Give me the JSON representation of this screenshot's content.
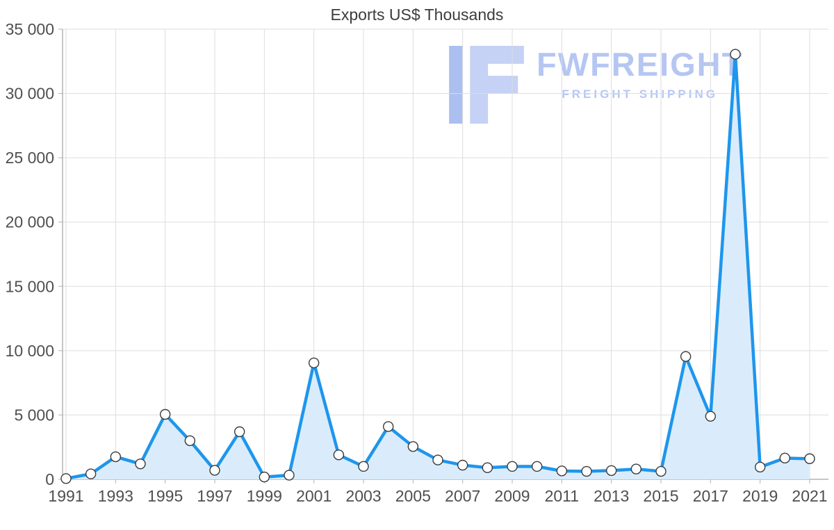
{
  "page": {
    "background": "#ffffff"
  },
  "chart_data": {
    "type": "area",
    "title": "Exports US$ Thousands",
    "x": [
      1991,
      1992,
      1993,
      1994,
      1995,
      1996,
      1997,
      1998,
      1999,
      2000,
      2001,
      2002,
      2003,
      2004,
      2005,
      2006,
      2007,
      2008,
      2009,
      2010,
      2011,
      2012,
      2013,
      2014,
      2015,
      2016,
      2017,
      2018,
      2019,
      2020,
      2021
    ],
    "values": [
      60,
      420,
      1750,
      1200,
      5050,
      3000,
      700,
      3700,
      180,
      320,
      9050,
      1900,
      1000,
      4100,
      2550,
      1500,
      1100,
      900,
      1000,
      1000,
      650,
      620,
      680,
      800,
      620,
      9550,
      4900,
      33050,
      950,
      1650,
      1600
    ],
    "xlabel": "",
    "ylabel": "",
    "ylim": [
      0,
      35000
    ],
    "ytick_step": 5000,
    "xtick_step": 2,
    "ytick_labels": [
      "0",
      "5 000",
      "10 000",
      "15 000",
      "20 000",
      "25 000",
      "30 000",
      "35 000"
    ],
    "grid": true,
    "legend": "none",
    "line_color": "#1e96ec",
    "fill_color": "#daecfb",
    "grid_color": "#dddddd",
    "axis_color": "#b3b3b3",
    "tick_text_color": "#4f4f4f",
    "marker": {
      "fill": "#ffffff",
      "stroke": "#3a3a3a"
    }
  },
  "watermark": {
    "brand": "FWFREIGHT",
    "tagline": "FREIGHT SHIPPING",
    "color": "#a9bdf0",
    "logo_color_light": "#bccaf4",
    "logo_color_dark": "#9db4ee"
  }
}
